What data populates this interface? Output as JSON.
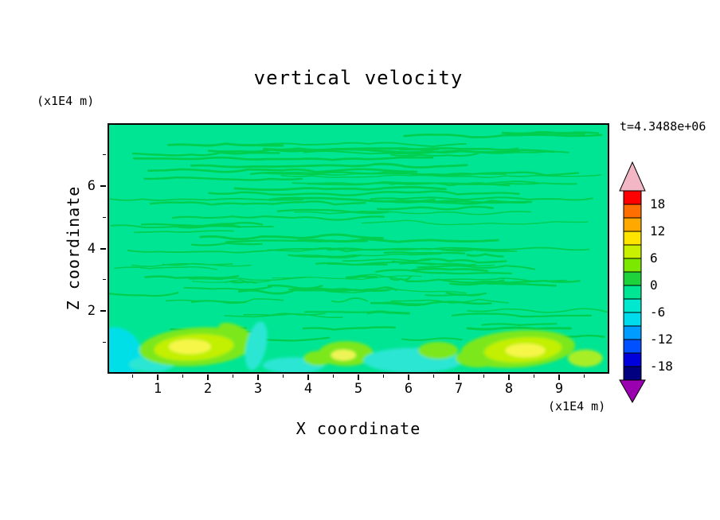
{
  "chart_data": {
    "type": "heatmap",
    "title": "vertical velocity",
    "xlabel": "X coordinate",
    "ylabel": "Z coordinate",
    "x_unit": "(x1E4 m)",
    "y_unit": "(x1E4 m)",
    "time_annotation": "t=4.3488e+06",
    "x_range": [
      0,
      10
    ],
    "y_range": [
      0,
      8
    ],
    "x_ticks": [
      1,
      2,
      3,
      4,
      5,
      6,
      7,
      8,
      9
    ],
    "y_ticks": [
      2,
      4,
      6
    ],
    "contour_interval": 3,
    "grid": false,
    "legend_position": "right-colorbar",
    "colorbar": {
      "tick_labels": [
        "18",
        "12",
        "6",
        "0",
        "-6",
        "-12",
        "-18"
      ],
      "top_color": "#F2B6C4",
      "bottom_color": "#9A00B0",
      "band_colors": [
        "#FF0000",
        "#FF6E00",
        "#FFA800",
        "#FFE400",
        "#C8F000",
        "#7CE800",
        "#1ED23C",
        "#00E594",
        "#00E8CE",
        "#00DCEC",
        "#009CFF",
        "#0050FF",
        "#0000DC",
        "#000080"
      ]
    },
    "field": {
      "background_color": "#00E594",
      "streak_color": "#00CE4E",
      "seed": 7,
      "streak_regions": [
        {
          "y0": 0.03,
          "y1": 0.3,
          "count": 24,
          "l0": 0.15,
          "l1": 0.7,
          "w": 2.0
        },
        {
          "y0": 0.3,
          "y1": 0.52,
          "count": 24,
          "l0": 0.1,
          "l1": 0.5,
          "w": 2.2
        },
        {
          "y0": 0.52,
          "y1": 0.78,
          "count": 50,
          "l0": 0.04,
          "l1": 0.3,
          "w": 2.6
        },
        {
          "y0": 0.8,
          "y1": 0.88,
          "count": 8,
          "l0": 0.05,
          "l1": 0.22,
          "w": 2.0
        }
      ],
      "blobs": [
        {
          "x": 0.1,
          "y": 0.55,
          "rx": 0.55,
          "ry": 0.9,
          "rot": 0,
          "color": "#00DFE8"
        },
        {
          "x": 0.85,
          "y": 0.25,
          "rx": 0.45,
          "ry": 0.25,
          "rot": 0,
          "color": "#2BE6D3"
        },
        {
          "x": 1.75,
          "y": 0.82,
          "rx": 1.15,
          "ry": 0.62,
          "rot": -4,
          "color": "#7CE81E"
        },
        {
          "x": 2.55,
          "y": 1.25,
          "rx": 0.38,
          "ry": 0.26,
          "rot": 25,
          "color": "#7CE81E"
        },
        {
          "x": 1.7,
          "y": 0.8,
          "rx": 0.8,
          "ry": 0.42,
          "rot": -4,
          "color": "#C2F000"
        },
        {
          "x": 1.62,
          "y": 0.82,
          "rx": 0.42,
          "ry": 0.24,
          "rot": 0,
          "color": "#F6F64A"
        },
        {
          "x": 2.95,
          "y": 0.85,
          "rx": 0.2,
          "ry": 0.8,
          "rot": 12,
          "color": "#2BE6D3"
        },
        {
          "x": 3.7,
          "y": 0.22,
          "rx": 0.62,
          "ry": 0.26,
          "rot": 0,
          "color": "#2BE6D3"
        },
        {
          "x": 4.2,
          "y": 0.45,
          "rx": 0.3,
          "ry": 0.24,
          "rot": 0,
          "color": "#7CE81E"
        },
        {
          "x": 4.75,
          "y": 0.6,
          "rx": 0.55,
          "ry": 0.4,
          "rot": 0,
          "color": "#7CE81E"
        },
        {
          "x": 4.7,
          "y": 0.55,
          "rx": 0.25,
          "ry": 0.18,
          "rot": 0,
          "color": "#EEF455"
        },
        {
          "x": 6.1,
          "y": 0.38,
          "rx": 1.0,
          "ry": 0.4,
          "rot": 0,
          "color": "#2BE6D3"
        },
        {
          "x": 6.6,
          "y": 0.7,
          "rx": 0.4,
          "ry": 0.28,
          "rot": 0,
          "color": "#7CE81E"
        },
        {
          "x": 7.4,
          "y": 0.45,
          "rx": 0.45,
          "ry": 0.3,
          "rot": 0,
          "color": "#7CE81E"
        },
        {
          "x": 8.2,
          "y": 0.75,
          "rx": 1.15,
          "ry": 0.6,
          "rot": -4,
          "color": "#7CE81E"
        },
        {
          "x": 8.3,
          "y": 0.72,
          "rx": 0.78,
          "ry": 0.4,
          "rot": -4,
          "color": "#C2F000"
        },
        {
          "x": 8.35,
          "y": 0.7,
          "rx": 0.4,
          "ry": 0.22,
          "rot": 0,
          "color": "#F6F64A"
        },
        {
          "x": 9.55,
          "y": 0.45,
          "rx": 0.35,
          "ry": 0.28,
          "rot": 0,
          "color": "#A8EE28"
        }
      ]
    }
  }
}
